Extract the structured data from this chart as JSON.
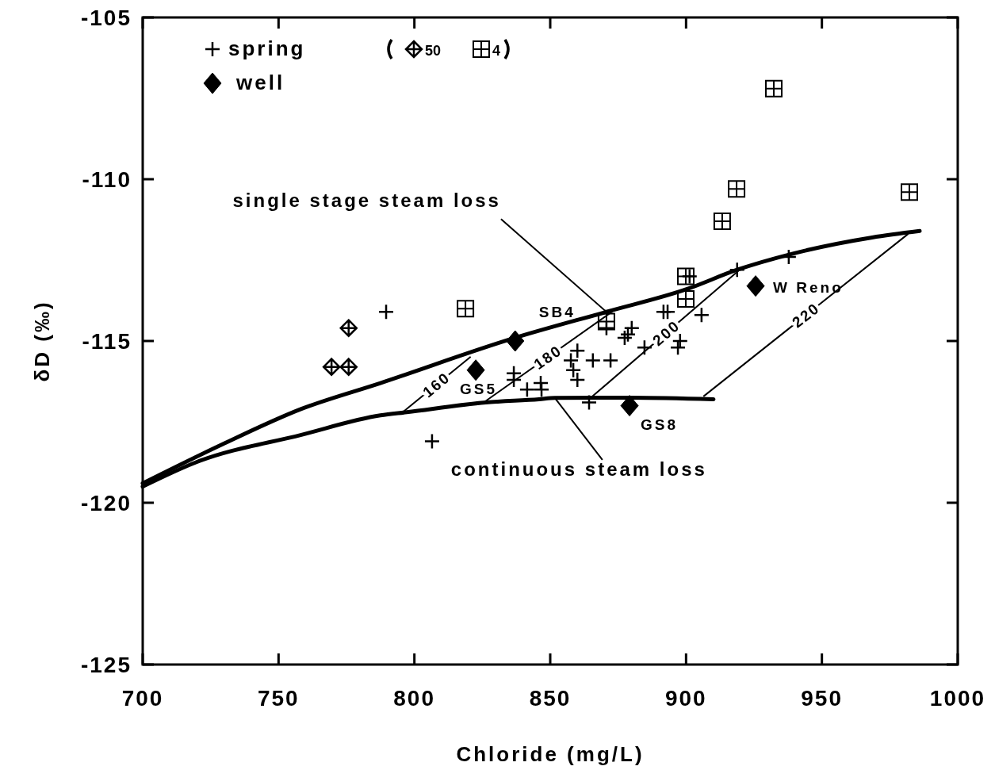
{
  "chart_data": {
    "type": "scatter",
    "xlabel": "Chloride (mg/L)",
    "ylabel": "δD (‰)",
    "xlim": [
      700,
      1000
    ],
    "xticks": [
      700,
      750,
      800,
      850,
      900,
      950,
      1000
    ],
    "ylim": [
      -125,
      -105
    ],
    "yticks": [
      -125,
      -120,
      -115,
      -110,
      -105
    ],
    "grid": false,
    "legend": "top left",
    "series": [
      {
        "name": "spring",
        "marker": "cross",
        "color": "#000000",
        "x": [
          789.6,
          806.5,
          836.6,
          836.6,
          841.5,
          846.5,
          846.8,
          860,
          857.6,
          858.5,
          860,
          865.7,
          872.2,
          864.3,
          870.7,
          877.4,
          878.6,
          880,
          884.7,
          891.7,
          893.2,
          897.8,
          897,
          905.7,
          901.3,
          918.8,
          937.8
        ],
        "values": [
          -114.1,
          -118.1,
          -116.0,
          -116.2,
          -116.5,
          -116.3,
          -116.5,
          -115.3,
          -115.6,
          -115.9,
          -116.2,
          -115.6,
          -115.6,
          -116.9,
          -114.6,
          -114.9,
          -114.8,
          -114.6,
          -115.2,
          -114.1,
          -114.1,
          -115.0,
          -115.2,
          -114.2,
          -113.0,
          -112.8,
          -112.4
        ]
      },
      {
        "name": "50",
        "color": "#000000",
        "x": [
          769.5,
          775.8,
          775.8
        ],
        "values": [
          -115.8,
          -115.8,
          -114.6
        ]
      },
      {
        "name": "4",
        "color": "#000000",
        "x": [
          818.8,
          870.7,
          899.9,
          899.9,
          913.3,
          918.6,
          932.3,
          982.2
        ],
        "values": [
          -114.0,
          -114.4,
          -113.0,
          -113.7,
          -111.3,
          -110.3,
          -107.2,
          -110.4
        ]
      },
      {
        "name": "well",
        "marker": "diamond",
        "color": "#000000",
        "x": [
          837.1,
          822.6,
          879.2,
          925.6
        ],
        "values": [
          -115.0,
          -115.9,
          -117.0,
          -113.3
        ]
      },
      {
        "type": "line",
        "color": "#000000",
        "x": [
          700,
          729.2,
          758.4,
          787.5,
          837.1,
          870.7,
          900.2,
          918.8,
          939.3,
          968.5,
          986
        ],
        "values": [
          -119.4,
          -118.2,
          -117.1,
          -116.3,
          -114.9,
          -114.1,
          -113.4,
          -112.8,
          -112.3,
          -111.8,
          -111.6
        ]
      },
      {
        "type": "line",
        "color": "#000000",
        "x": [
          700,
          719.6,
          758.4,
          787.5,
          797.2,
          826.3,
          845.9,
          851.7,
          880,
          910.1
        ],
        "values": [
          -119.5,
          -118.75,
          -117.9,
          -117.3,
          -117.2,
          -116.9,
          -116.8,
          -116.76,
          -116.75,
          -116.8
        ]
      },
      {
        "name": "160",
        "type": "line",
        "color": "#000000",
        "x": [
          795.7,
          820.5
        ],
        "values": [
          -117.2,
          -115.5
        ]
      },
      {
        "name": "180",
        "type": "line",
        "color": "#000000",
        "x": [
          825.5,
          872.7
        ],
        "values": [
          -116.9,
          -114.1
        ]
      },
      {
        "name": "200",
        "type": "line",
        "color": "#000000",
        "x": [
          865.7,
          919.7
        ],
        "values": [
          -116.7,
          -112.8
        ]
      },
      {
        "name": "220",
        "type": "line",
        "color": "#000000",
        "x": [
          906.6,
          981.6
        ],
        "values": [
          -116.7,
          -111.7
        ]
      }
    ],
    "annotations": [
      {
        "text": "SB4",
        "x": 837.1,
        "y": -115.0
      },
      {
        "text": "GS5",
        "x": 822.6,
        "y": -115.9
      },
      {
        "text": "GS8",
        "x": 879.2,
        "y": -117.0
      },
      {
        "text": "W  Reno",
        "x": 925.6,
        "y": -113.3
      },
      {
        "text": "single stage steam loss",
        "x": 870.7,
        "y": -114.1
      },
      {
        "text": "continuous steam loss",
        "x": 851.7,
        "y": -116.76
      }
    ]
  }
}
